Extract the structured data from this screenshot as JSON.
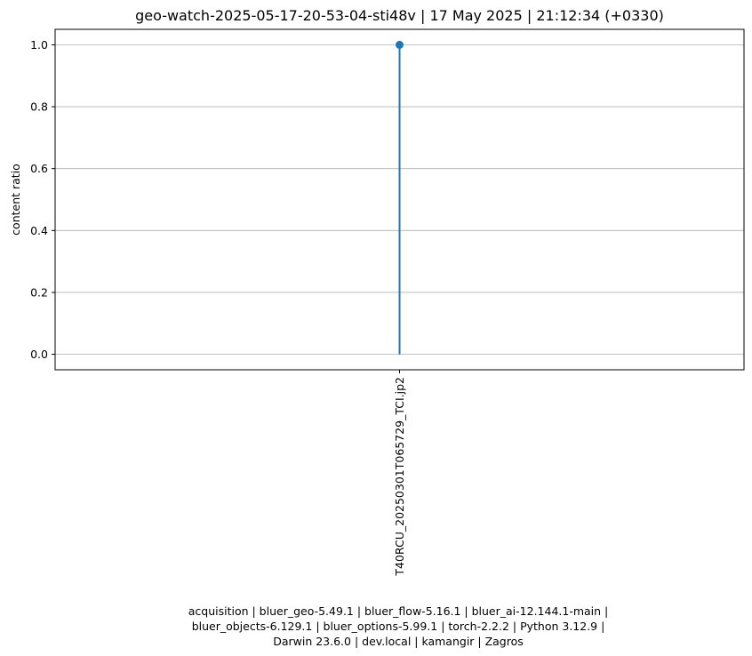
{
  "chart_data": {
    "type": "stem",
    "title": "geo-watch-2025-05-17-20-53-04-sti48v | 17 May 2025 | 21:12:34 (+0330)",
    "xlabel": "",
    "ylabel": "content ratio",
    "categories": [
      "T40RCU_20250301T065729_TCI.jp2"
    ],
    "values": [
      1.0
    ],
    "ylim": [
      -0.05,
      1.05
    ],
    "yticks": [
      0.0,
      0.2,
      0.4,
      0.6,
      0.8,
      1.0
    ],
    "ytick_labels": [
      "0.0",
      "0.2",
      "0.4",
      "0.6",
      "0.8",
      "1.0"
    ],
    "grid": "horizontal",
    "color": "#1f77b4",
    "grid_color": "#b0b0b0"
  },
  "footer": {
    "lines": [
      "acquisition | bluer_geo-5.49.1 | bluer_flow-5.16.1 | bluer_ai-12.144.1-main |",
      "bluer_objects-6.129.1 | bluer_options-5.99.1 | torch-2.2.2 | Python 3.12.9 |",
      "Darwin 23.6.0 | dev.local | kamangir | Zagros"
    ]
  }
}
